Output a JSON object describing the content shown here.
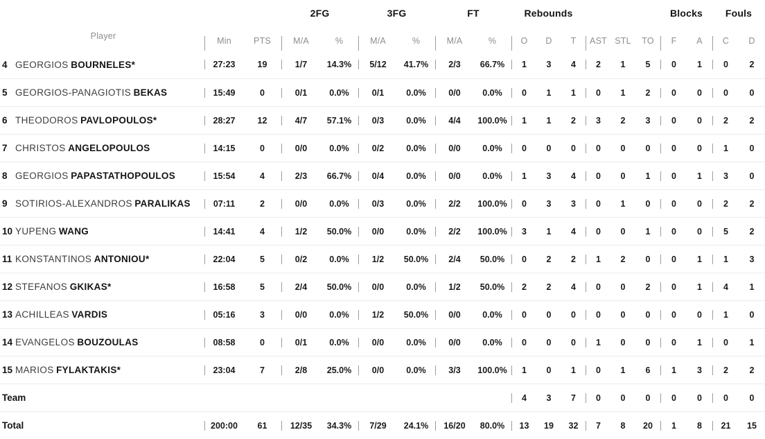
{
  "header": {
    "player": "Player",
    "min": "Min",
    "pts": "PTS",
    "group_2fg": "2FG",
    "group_3fg": "3FG",
    "group_ft": "FT",
    "group_rebounds": "Rebounds",
    "group_blocks": "Blocks",
    "group_fouls": "Fouls",
    "ma": "M/A",
    "pct": "%",
    "reb_o": "O",
    "reb_d": "D",
    "reb_t": "T",
    "ast": "AST",
    "stl": "STL",
    "to": "TO",
    "blk_f": "F",
    "blk_a": "A",
    "foul_c": "C",
    "foul_d": "D"
  },
  "colors": {
    "divider": "#9c9c9c",
    "row_separator": "#ececec",
    "sub_label": "#8d8d8d",
    "text": "#141414"
  },
  "players": [
    {
      "num": "4",
      "first": "GEORGIOS",
      "last": "BOURNELES*",
      "min": "27:23",
      "pts": "19",
      "fg2_ma": "1/7",
      "fg2_pct": "14.3%",
      "fg3_ma": "5/12",
      "fg3_pct": "41.7%",
      "ft_ma": "2/3",
      "ft_pct": "66.7%",
      "reb_o": "1",
      "reb_d": "3",
      "reb_t": "4",
      "ast": "2",
      "stl": "1",
      "to": "5",
      "blk_f": "0",
      "blk_a": "1",
      "foul_c": "0",
      "foul_d": "2"
    },
    {
      "num": "5",
      "first": "GEORGIOS-PANAGIOTIS",
      "last": "BEKAS",
      "min": "15:49",
      "pts": "0",
      "fg2_ma": "0/1",
      "fg2_pct": "0.0%",
      "fg3_ma": "0/1",
      "fg3_pct": "0.0%",
      "ft_ma": "0/0",
      "ft_pct": "0.0%",
      "reb_o": "0",
      "reb_d": "1",
      "reb_t": "1",
      "ast": "0",
      "stl": "1",
      "to": "2",
      "blk_f": "0",
      "blk_a": "0",
      "foul_c": "0",
      "foul_d": "0"
    },
    {
      "num": "6",
      "first": "THEODOROS",
      "last": "PAVLOPOULOS*",
      "min": "28:27",
      "pts": "12",
      "fg2_ma": "4/7",
      "fg2_pct": "57.1%",
      "fg3_ma": "0/3",
      "fg3_pct": "0.0%",
      "ft_ma": "4/4",
      "ft_pct": "100.0%",
      "reb_o": "1",
      "reb_d": "1",
      "reb_t": "2",
      "ast": "3",
      "stl": "2",
      "to": "3",
      "blk_f": "0",
      "blk_a": "0",
      "foul_c": "2",
      "foul_d": "2"
    },
    {
      "num": "7",
      "first": "CHRISTOS",
      "last": "ANGELOPOULOS",
      "min": "14:15",
      "pts": "0",
      "fg2_ma": "0/0",
      "fg2_pct": "0.0%",
      "fg3_ma": "0/2",
      "fg3_pct": "0.0%",
      "ft_ma": "0/0",
      "ft_pct": "0.0%",
      "reb_o": "0",
      "reb_d": "0",
      "reb_t": "0",
      "ast": "0",
      "stl": "0",
      "to": "0",
      "blk_f": "0",
      "blk_a": "0",
      "foul_c": "1",
      "foul_d": "0"
    },
    {
      "num": "8",
      "first": "GEORGIOS",
      "last": "PAPASTATHOPOULOS",
      "min": "15:54",
      "pts": "4",
      "fg2_ma": "2/3",
      "fg2_pct": "66.7%",
      "fg3_ma": "0/4",
      "fg3_pct": "0.0%",
      "ft_ma": "0/0",
      "ft_pct": "0.0%",
      "reb_o": "1",
      "reb_d": "3",
      "reb_t": "4",
      "ast": "0",
      "stl": "0",
      "to": "1",
      "blk_f": "0",
      "blk_a": "1",
      "foul_c": "3",
      "foul_d": "0"
    },
    {
      "num": "9",
      "first": "SOTIRIOS-ALEXANDROS",
      "last": "PARALIKAS",
      "min": "07:11",
      "pts": "2",
      "fg2_ma": "0/0",
      "fg2_pct": "0.0%",
      "fg3_ma": "0/3",
      "fg3_pct": "0.0%",
      "ft_ma": "2/2",
      "ft_pct": "100.0%",
      "reb_o": "0",
      "reb_d": "3",
      "reb_t": "3",
      "ast": "0",
      "stl": "1",
      "to": "0",
      "blk_f": "0",
      "blk_a": "0",
      "foul_c": "2",
      "foul_d": "2"
    },
    {
      "num": "10",
      "first": "YUPENG",
      "last": "WANG",
      "min": "14:41",
      "pts": "4",
      "fg2_ma": "1/2",
      "fg2_pct": "50.0%",
      "fg3_ma": "0/0",
      "fg3_pct": "0.0%",
      "ft_ma": "2/2",
      "ft_pct": "100.0%",
      "reb_o": "3",
      "reb_d": "1",
      "reb_t": "4",
      "ast": "0",
      "stl": "0",
      "to": "1",
      "blk_f": "0",
      "blk_a": "0",
      "foul_c": "5",
      "foul_d": "2"
    },
    {
      "num": "11",
      "first": "KONSTANTINOS",
      "last": "ANTONIOU*",
      "min": "22:04",
      "pts": "5",
      "fg2_ma": "0/2",
      "fg2_pct": "0.0%",
      "fg3_ma": "1/2",
      "fg3_pct": "50.0%",
      "ft_ma": "2/4",
      "ft_pct": "50.0%",
      "reb_o": "0",
      "reb_d": "2",
      "reb_t": "2",
      "ast": "1",
      "stl": "2",
      "to": "0",
      "blk_f": "0",
      "blk_a": "1",
      "foul_c": "1",
      "foul_d": "3"
    },
    {
      "num": "12",
      "first": "STEFANOS",
      "last": "GKIKAS*",
      "min": "16:58",
      "pts": "5",
      "fg2_ma": "2/4",
      "fg2_pct": "50.0%",
      "fg3_ma": "0/0",
      "fg3_pct": "0.0%",
      "ft_ma": "1/2",
      "ft_pct": "50.0%",
      "reb_o": "2",
      "reb_d": "2",
      "reb_t": "4",
      "ast": "0",
      "stl": "0",
      "to": "2",
      "blk_f": "0",
      "blk_a": "1",
      "foul_c": "4",
      "foul_d": "1"
    },
    {
      "num": "13",
      "first": "ACHILLEAS",
      "last": "VARDIS",
      "min": "05:16",
      "pts": "3",
      "fg2_ma": "0/0",
      "fg2_pct": "0.0%",
      "fg3_ma": "1/2",
      "fg3_pct": "50.0%",
      "ft_ma": "0/0",
      "ft_pct": "0.0%",
      "reb_o": "0",
      "reb_d": "0",
      "reb_t": "0",
      "ast": "0",
      "stl": "0",
      "to": "0",
      "blk_f": "0",
      "blk_a": "0",
      "foul_c": "1",
      "foul_d": "0"
    },
    {
      "num": "14",
      "first": "EVANGELOS",
      "last": "BOUZOULAS",
      "min": "08:58",
      "pts": "0",
      "fg2_ma": "0/1",
      "fg2_pct": "0.0%",
      "fg3_ma": "0/0",
      "fg3_pct": "0.0%",
      "ft_ma": "0/0",
      "ft_pct": "0.0%",
      "reb_o": "0",
      "reb_d": "0",
      "reb_t": "0",
      "ast": "1",
      "stl": "0",
      "to": "0",
      "blk_f": "0",
      "blk_a": "1",
      "foul_c": "0",
      "foul_d": "1"
    },
    {
      "num": "15",
      "first": "MARIOS",
      "last": "FYLAKTAKIS*",
      "min": "23:04",
      "pts": "7",
      "fg2_ma": "2/8",
      "fg2_pct": "25.0%",
      "fg3_ma": "0/0",
      "fg3_pct": "0.0%",
      "ft_ma": "3/3",
      "ft_pct": "100.0%",
      "reb_o": "1",
      "reb_d": "0",
      "reb_t": "1",
      "ast": "0",
      "stl": "1",
      "to": "6",
      "blk_f": "1",
      "blk_a": "3",
      "foul_c": "2",
      "foul_d": "2"
    }
  ],
  "team_row": {
    "label": "Team",
    "reb_o": "4",
    "reb_d": "3",
    "reb_t": "7",
    "ast": "0",
    "stl": "0",
    "to": "0",
    "blk_f": "0",
    "blk_a": "0",
    "foul_c": "0",
    "foul_d": "0"
  },
  "total_row": {
    "label": "Total",
    "min": "200:00",
    "pts": "61",
    "fg2_ma": "12/35",
    "fg2_pct": "34.3%",
    "fg3_ma": "7/29",
    "fg3_pct": "24.1%",
    "ft_ma": "16/20",
    "ft_pct": "80.0%",
    "reb_o": "13",
    "reb_d": "19",
    "reb_t": "32",
    "ast": "7",
    "stl": "8",
    "to": "20",
    "blk_f": "1",
    "blk_a": "8",
    "foul_c": "21",
    "foul_d": "15"
  }
}
